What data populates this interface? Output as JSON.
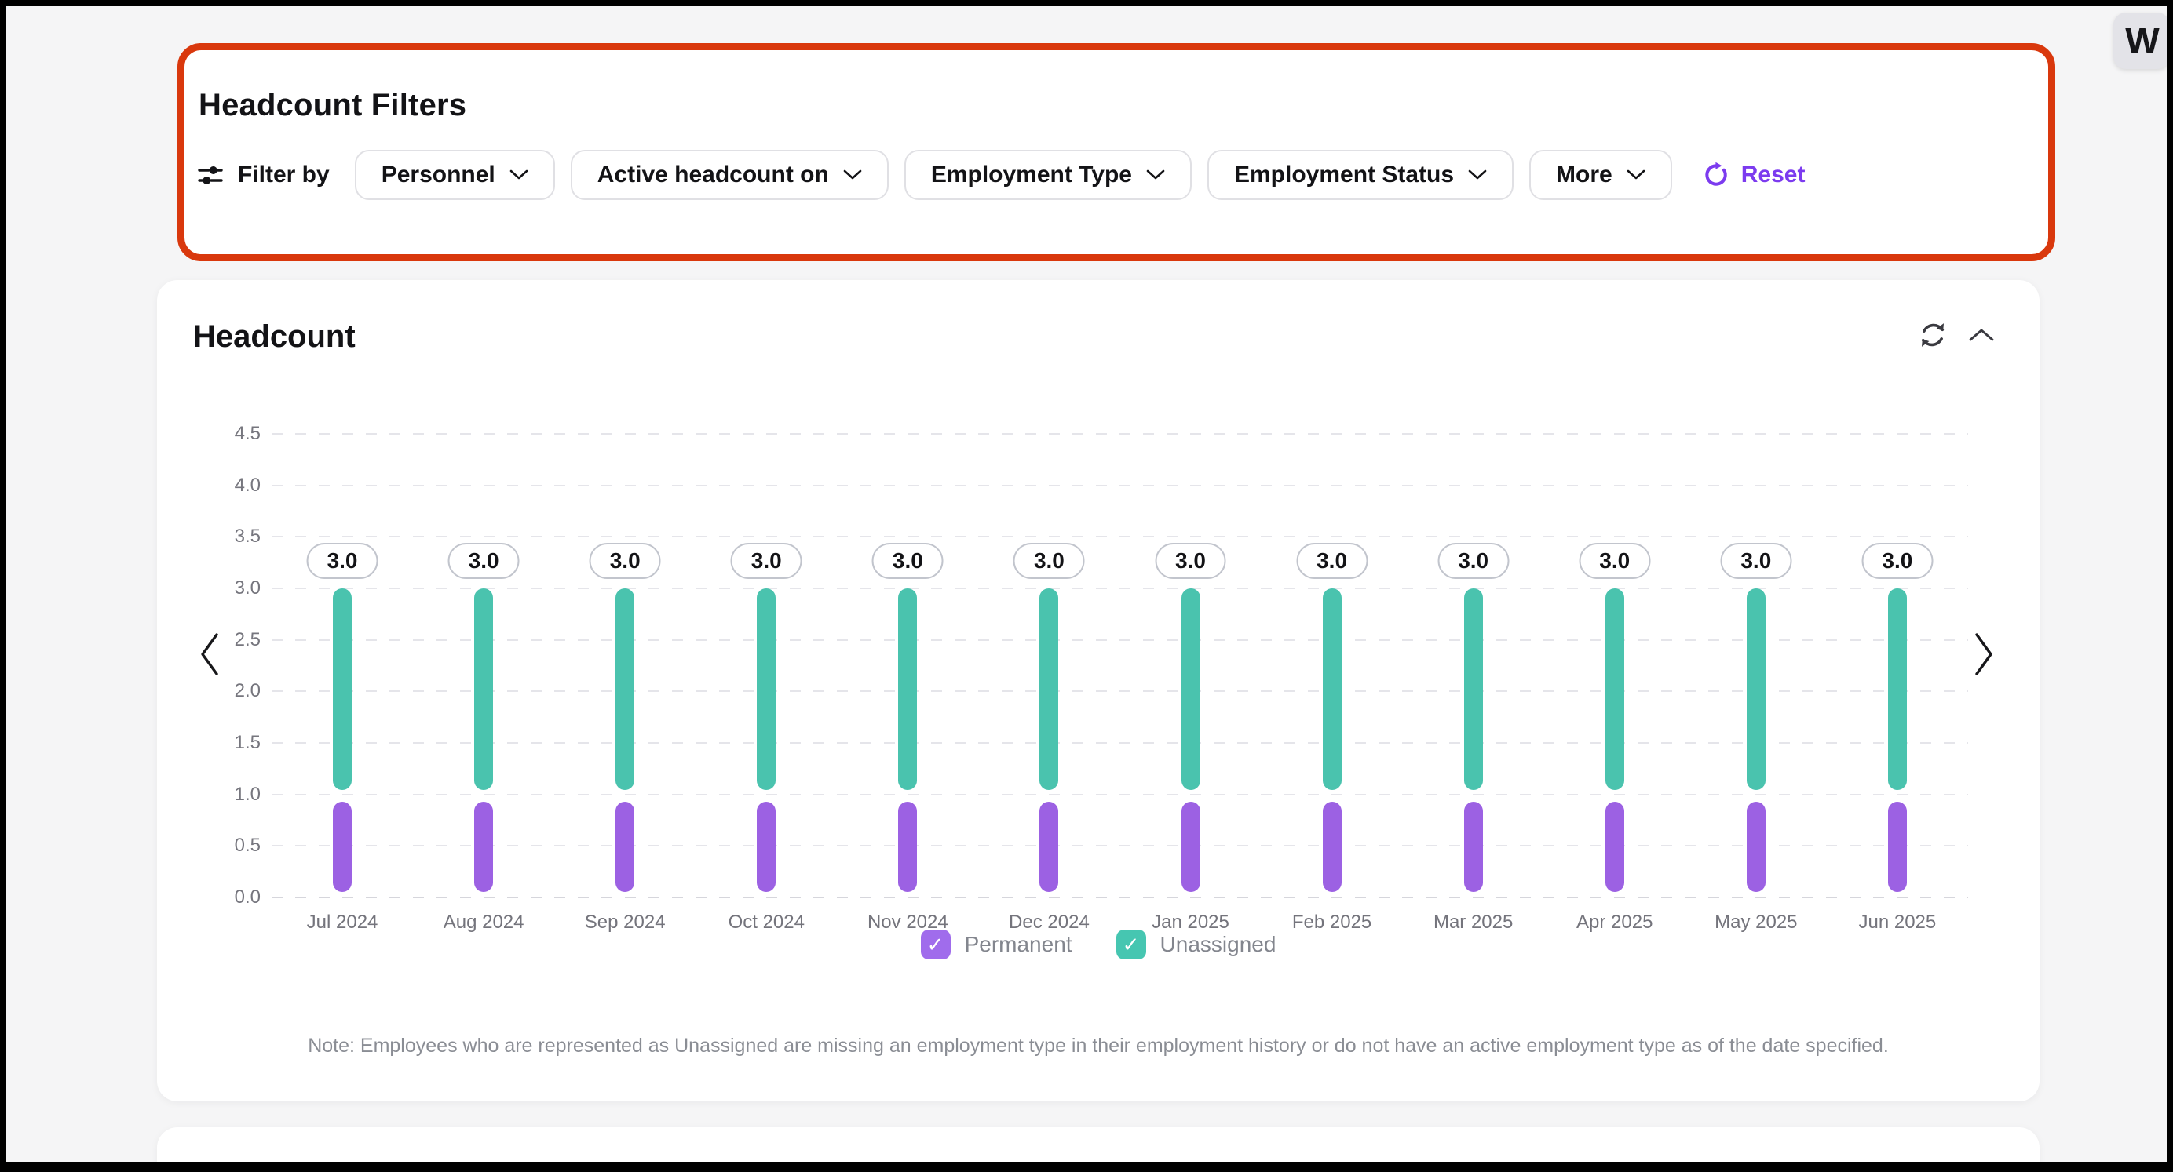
{
  "logo": {
    "letter": "W"
  },
  "filters_panel": {
    "title": "Headcount Filters",
    "filter_by_label": "Filter by",
    "highlight_color": "#d9380d",
    "dropdowns": [
      {
        "label": "Personnel"
      },
      {
        "label": "Active headcount on"
      },
      {
        "label": "Employment Type"
      },
      {
        "label": "Employment Status"
      },
      {
        "label": "More"
      }
    ],
    "reset_label": "Reset",
    "accent_color": "#7c3bef"
  },
  "chart_card": {
    "title": "Headcount",
    "note": "Note: Employees who are represented as Unassigned are missing an employment type in their employment history or do not have an active employment type as of the date specified.",
    "legend": [
      {
        "label": "Permanent",
        "color": "#a06cec",
        "checked": true
      },
      {
        "label": "Unassigned",
        "color": "#46c6b1",
        "checked": true
      }
    ]
  },
  "chart_data": {
    "type": "bar",
    "stacked": true,
    "categories": [
      "Jul 2024",
      "Aug 2024",
      "Sep 2024",
      "Oct 2024",
      "Nov 2024",
      "Dec 2024",
      "Jan 2025",
      "Feb 2025",
      "Mar 2025",
      "Apr 2025",
      "May 2025",
      "Jun 2025"
    ],
    "series": [
      {
        "name": "Permanent",
        "color": "#9c61e3",
        "values": [
          1,
          1,
          1,
          1,
          1,
          1,
          1,
          1,
          1,
          1,
          1,
          1
        ]
      },
      {
        "name": "Unassigned",
        "color": "#4ac3ae",
        "values": [
          2,
          2,
          2,
          2,
          2,
          2,
          2,
          2,
          2,
          2,
          2,
          2
        ]
      }
    ],
    "totals": [
      "3.0",
      "3.0",
      "3.0",
      "3.0",
      "3.0",
      "3.0",
      "3.0",
      "3.0",
      "3.0",
      "3.0",
      "3.0",
      "3.0"
    ],
    "yticks": [
      "0.0",
      "0.5",
      "1.0",
      "1.5",
      "2.0",
      "2.5",
      "3.0",
      "3.5",
      "4.0",
      "4.5"
    ],
    "ylim": [
      0,
      4.5
    ],
    "grid": "dashed",
    "legend_position": "bottom"
  }
}
